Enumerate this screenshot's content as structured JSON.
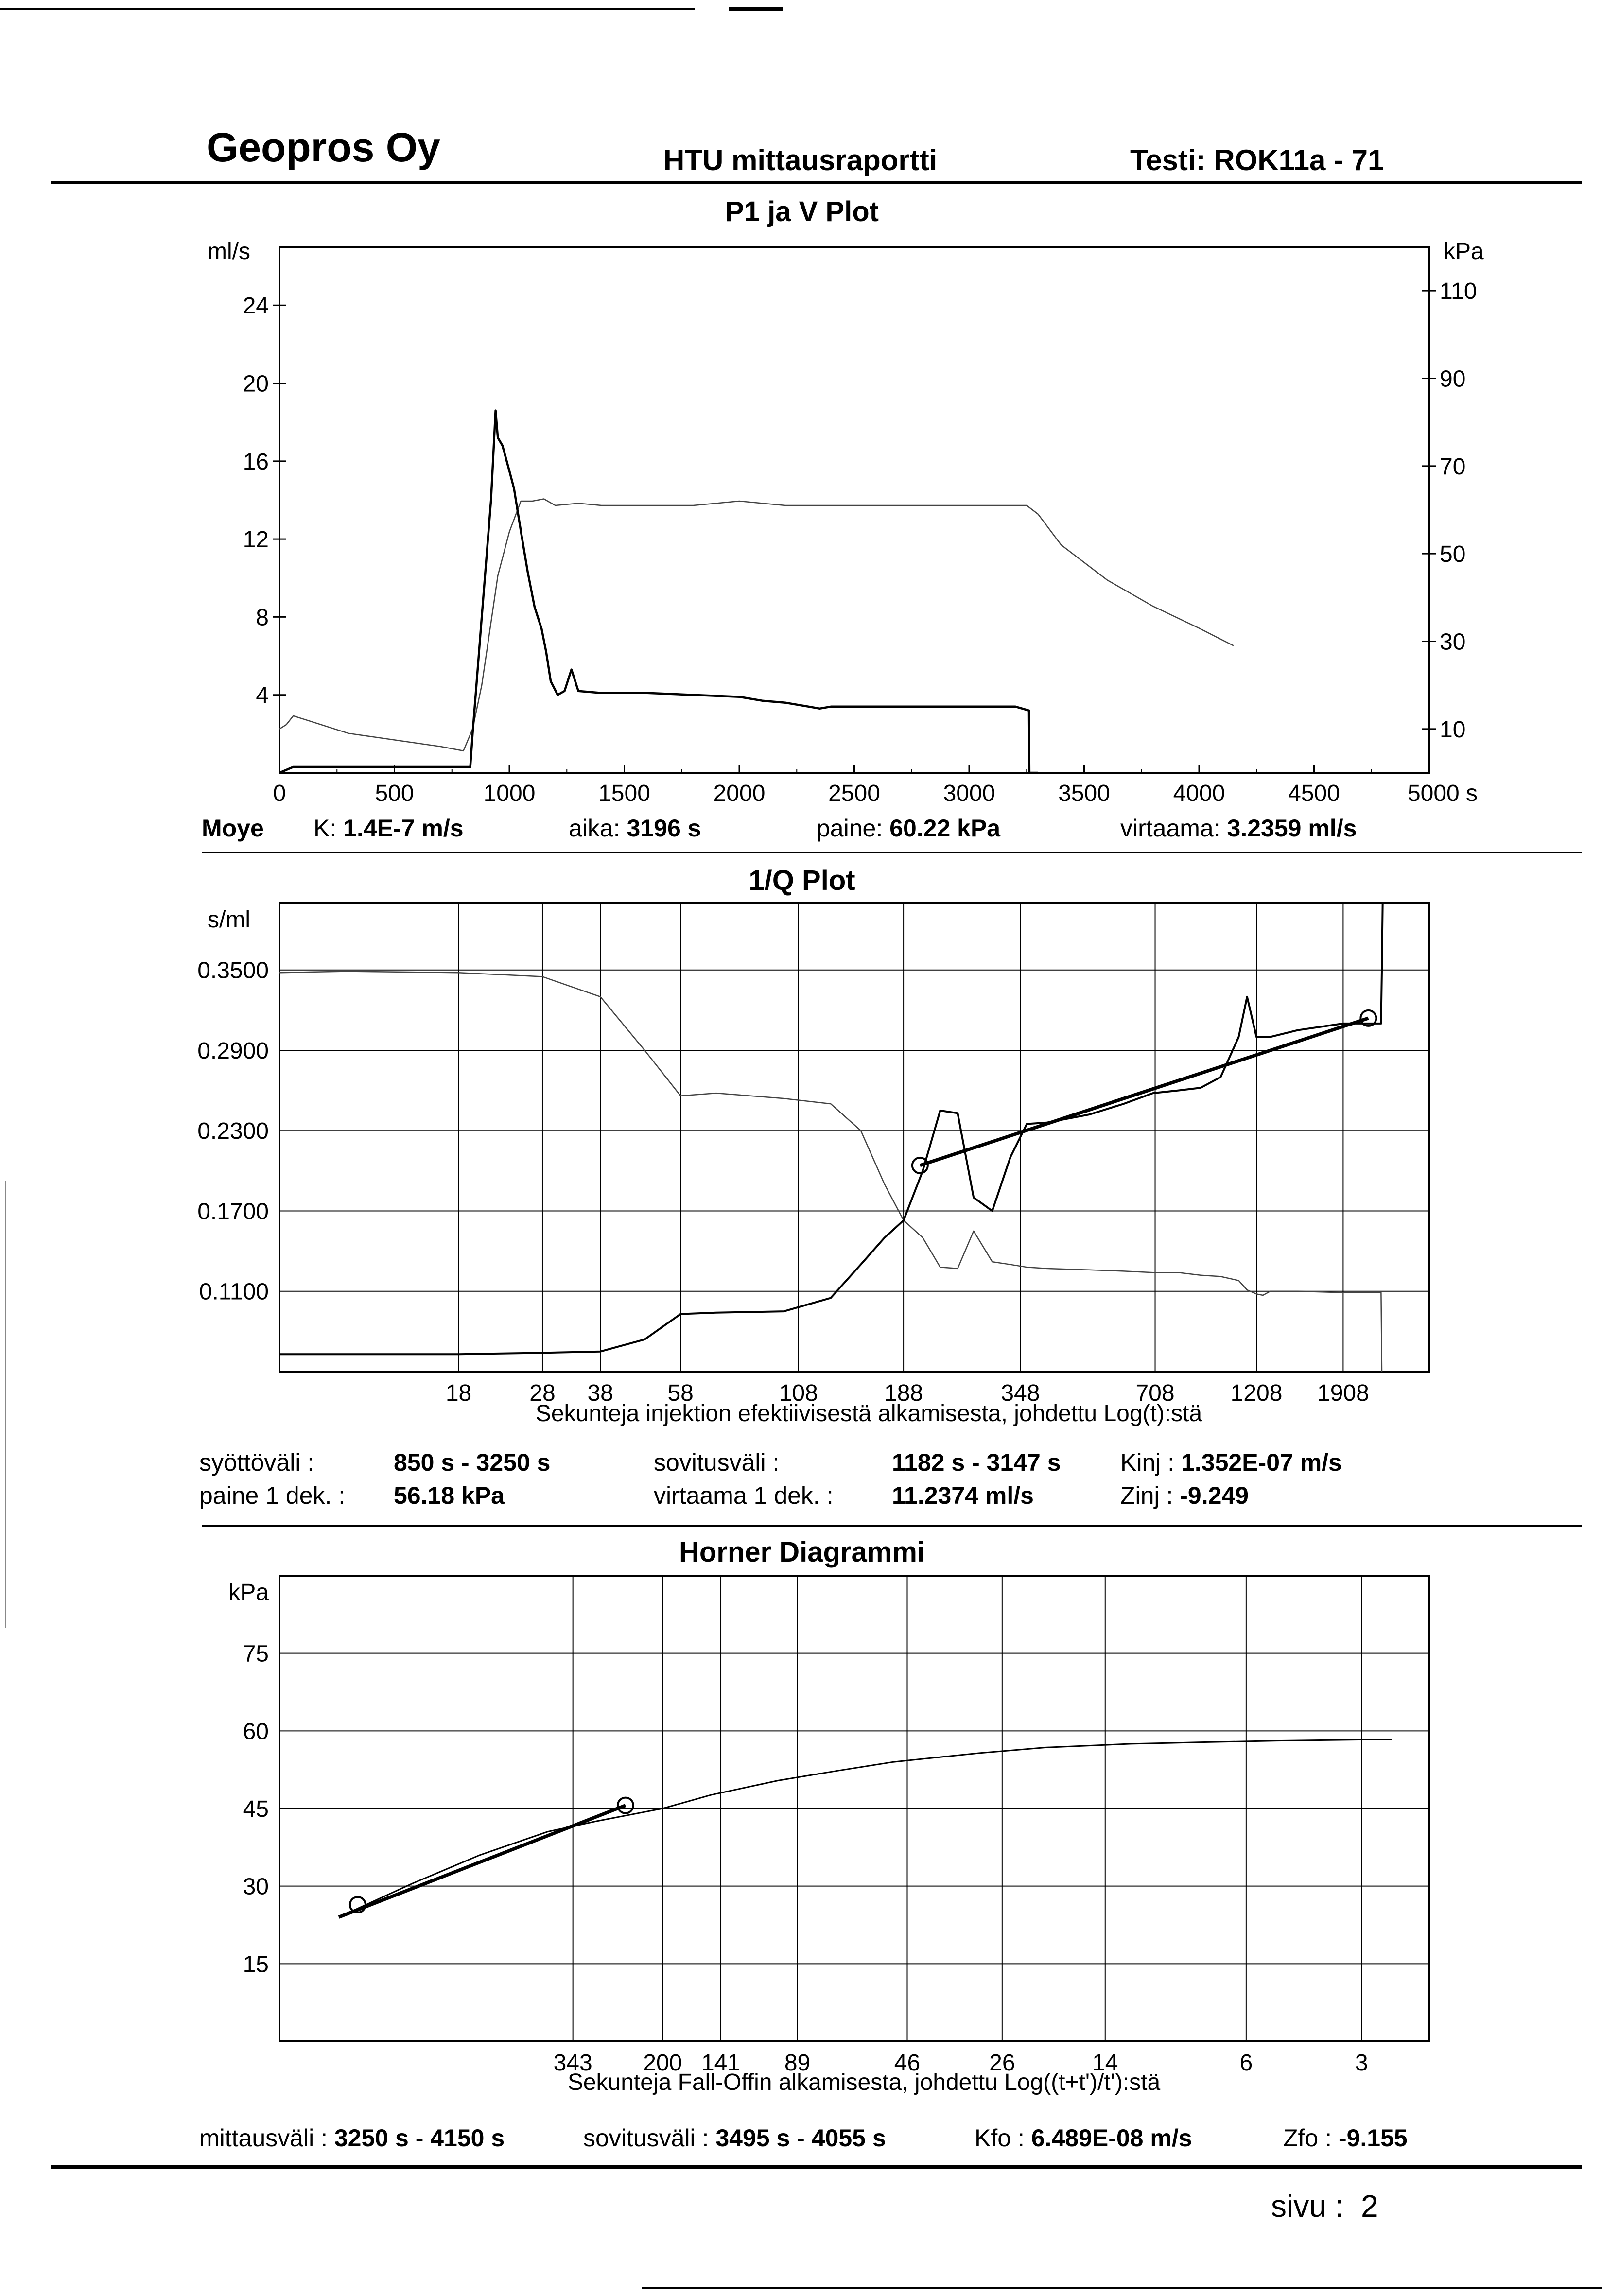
{
  "header": {
    "company": "Geopros Oy",
    "report": "HTU mittausraportti",
    "test": "Testi: ROK11a - 71"
  },
  "plot1": {
    "title": "P1 ja V Plot",
    "left_unit": "ml/s",
    "right_unit": "kPa",
    "info": {
      "label": "Moye",
      "k_label": "K:",
      "k_value": "1.4E-7 m/s",
      "aika_label": "aika:",
      "aika_value": "3196 s",
      "paine_label": "paine:",
      "paine_value": "60.22 kPa",
      "virtaama_label": "virtaama:",
      "virtaama_value": "3.2359 ml/s"
    }
  },
  "plot2": {
    "title": "1/Q Plot",
    "y_unit": "s/ml",
    "xlabel": "Sekunteja injektion efektiivisestä alkamisesta, johdettu Log(t):stä",
    "info": {
      "syotto_label": "syöttöväli :",
      "syotto_value": "850 s - 3250 s",
      "sovitus_label": "sovitusväli :",
      "sovitus_value": "1182 s  -  3147 s",
      "kinj_label": "Kinj :",
      "kinj_value": "1.352E-07 m/s",
      "paine_label": "paine 1 dek. :",
      "paine_value": "56.18 kPa",
      "virtaama_label": "virtaama 1 dek. :",
      "virtaama_value": "11.2374 ml/s",
      "zinj_label": "Zinj :",
      "zinj_value": "-9.249"
    }
  },
  "plot3": {
    "title": "Horner Diagrammi",
    "y_unit": "kPa",
    "xlabel": "Sekunteja Fall-Offin alkamisesta, johdettu Log((t+t')/t'):stä",
    "info": {
      "mittaus_label": "mittausväli :",
      "mittaus_value": "3250 s - 4150 s",
      "sovitus_label": "sovitusväli :",
      "sovitus_value": "3495 s - 4055 s",
      "kfo_label": "Kfo :",
      "kfo_value": "6.489E-08 m/s",
      "zfo_label": "Zfo :",
      "zfo_value": "-9.155"
    }
  },
  "footer": {
    "page": "sivu :  2"
  },
  "chart_data": [
    {
      "type": "line",
      "title": "P1 ja V Plot",
      "xlabel": "s",
      "xlim": [
        0,
        5000
      ],
      "ylim_left": [
        0,
        27
      ],
      "ylim_right": [
        0,
        120
      ],
      "ylabel_left": "ml/s",
      "ylabel_right": "kPa",
      "x_ticks": [
        0,
        500,
        1000,
        1500,
        2000,
        2500,
        3000,
        3500,
        4000,
        4500,
        5000
      ],
      "x_tick_labels": [
        "0",
        "500",
        "1000",
        "1500",
        "2000",
        "2500",
        "3000",
        "3500",
        "4000",
        "4500",
        "5000 s"
      ],
      "y_ticks_left": [
        4,
        8,
        12,
        16,
        20,
        24
      ],
      "y_ticks_right": [
        10,
        30,
        50,
        70,
        90,
        110
      ],
      "series": [
        {
          "axis": "left",
          "x": [
            0,
            60,
            100,
            200,
            400,
            600,
            780,
            830,
            840,
            880,
            920,
            940,
            950,
            970,
            1000,
            1020,
            1050,
            1080,
            1110,
            1140,
            1160,
            1180,
            1210,
            1240,
            1270,
            1300,
            1400,
            1600,
            1800,
            2000,
            2100,
            2200,
            2300,
            2350,
            2400,
            2600,
            2800,
            3000,
            3200,
            3260,
            3262,
            3300
          ],
          "y": [
            0,
            0.3,
            0.3,
            0.3,
            0.3,
            0.3,
            0.3,
            0.3,
            2,
            8,
            14,
            18.6,
            17.2,
            16.8,
            15.5,
            14.6,
            12.4,
            10.3,
            8.5,
            7.4,
            6.2,
            4.7,
            4.0,
            4.2,
            5.3,
            4.2,
            4.1,
            4.1,
            4.0,
            3.9,
            3.7,
            3.6,
            3.4,
            3.3,
            3.4,
            3.4,
            3.4,
            3.4,
            3.4,
            3.2,
            0,
            0
          ]
        },
        {
          "axis": "right",
          "x": [
            0,
            30,
            60,
            120,
            300,
            500,
            700,
            800,
            840,
            880,
            950,
            1000,
            1050,
            1100,
            1150,
            1200,
            1300,
            1400,
            1600,
            1800,
            2000,
            2200,
            2400,
            2600,
            2800,
            3000,
            3200,
            3250,
            3300,
            3400,
            3600,
            3800,
            4000,
            4150
          ],
          "y": [
            10,
            11,
            13,
            12,
            9,
            7.5,
            6,
            5,
            10,
            20,
            45,
            55,
            62,
            62,
            62.5,
            61,
            61.5,
            61,
            61,
            61,
            62,
            61,
            61,
            61,
            61,
            61,
            61,
            61,
            59,
            52,
            44,
            38,
            33,
            29
          ]
        }
      ]
    },
    {
      "type": "line",
      "title": "1/Q Plot",
      "ylabel": "s/ml",
      "xlabel": "Sekunteja injektion efektiivisestä alkamisesta, johdettu Log(t):stä",
      "x_scale": "log",
      "xlim": [
        7,
        3000
      ],
      "ylim": [
        0.05,
        0.4
      ],
      "y_ticks": [
        0.11,
        0.17,
        0.23,
        0.29,
        0.35
      ],
      "y_tick_labels": [
        "0.1100",
        "0.1700",
        "0.2300",
        "0.2900",
        "0.3500"
      ],
      "x_ticks": [
        18,
        28,
        38,
        58,
        108,
        188,
        348,
        708,
        1208,
        1908
      ],
      "series": [
        {
          "x": [
            7,
            10,
            18,
            28,
            38,
            48,
            58,
            70,
            100,
            128,
            150,
            170,
            188,
            208,
            228,
            250,
            272,
            300,
            330,
            360,
            400,
            500,
            600,
            700,
            800,
            900,
            1000,
            1100,
            1150,
            1208,
            1250,
            1300,
            1500,
            1908,
            2330,
            2340,
            2350
          ],
          "y": [
            0.063,
            0.063,
            0.063,
            0.064,
            0.065,
            0.074,
            0.093,
            0.094,
            0.095,
            0.105,
            0.13,
            0.15,
            0.163,
            0.2,
            0.245,
            0.243,
            0.18,
            0.17,
            0.21,
            0.235,
            0.236,
            0.242,
            0.25,
            0.258,
            0.26,
            0.262,
            0.27,
            0.3,
            0.33,
            0.3,
            0.3,
            0.3,
            0.305,
            0.31,
            0.31,
            0.35,
            0.45
          ]
        },
        {
          "x": [
            7,
            10,
            18,
            28,
            38,
            48,
            58,
            70,
            100,
            128,
            150,
            170,
            188,
            208,
            228,
            250,
            272,
            300,
            330,
            360,
            400,
            500,
            600,
            700,
            800,
            900,
            1000,
            1100,
            1150,
            1208,
            1250,
            1300,
            1500,
            1908,
            2330,
            2340
          ],
          "y": [
            0.348,
            0.349,
            0.348,
            0.345,
            0.33,
            0.29,
            0.256,
            0.258,
            0.254,
            0.25,
            0.23,
            0.19,
            0.163,
            0.15,
            0.128,
            0.127,
            0.155,
            0.132,
            0.13,
            0.128,
            0.127,
            0.126,
            0.125,
            0.124,
            0.124,
            0.122,
            0.121,
            0.118,
            0.111,
            0.108,
            0.107,
            0.11,
            0.11,
            0.109,
            0.109,
            0.05
          ]
        },
        {
          "x": [
            205,
            2180
          ],
          "y": [
            0.204,
            0.314
          ]
        }
      ],
      "markers": [
        {
          "x": 205,
          "y": 0.204
        },
        {
          "x": 2180,
          "y": 0.314
        }
      ]
    },
    {
      "type": "line",
      "title": "Horner Diagrammi",
      "ylabel": "kPa",
      "xlabel": "Sekunteja Fall-Offin alkamisesta, johdettu Log((t+t')/t'):stä",
      "x_scale": "log_reversed",
      "xlim": [
        2000,
        2
      ],
      "ylim": [
        0,
        90
      ],
      "y_ticks": [
        15,
        30,
        45,
        60,
        75
      ],
      "x_ticks": [
        343,
        200,
        141,
        89,
        46,
        26,
        14,
        6,
        3
      ],
      "series": [
        {
          "x": [
            1400,
            900,
            600,
            400,
            300,
            200,
            150,
            100,
            70,
            50,
            30,
            20,
            12,
            8,
            5,
            3,
            2.5
          ],
          "y": [
            24,
            30.5,
            36,
            40.5,
            42.5,
            45,
            47.6,
            50.4,
            52.3,
            54,
            55.7,
            56.8,
            57.5,
            57.8,
            58.1,
            58.3,
            58.3
          ]
        },
        {
          "x": [
            1400,
            250
          ],
          "y": [
            24,
            45.6
          ]
        }
      ],
      "markers": [
        {
          "x": 1250,
          "y": 26.4
        },
        {
          "x": 250,
          "y": 45.6
        }
      ]
    }
  ]
}
